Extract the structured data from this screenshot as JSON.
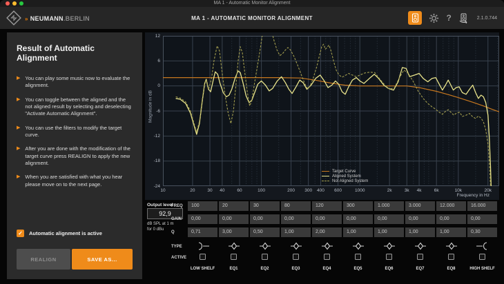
{
  "titlebar": {
    "title": "MA 1 - Automatic Monitor Alignment"
  },
  "header": {
    "brand_prefix": "»",
    "brand_name": "NEUMANN",
    "brand_suffix": ".BERLIN",
    "title": "MA 1 - AUTOMATIC MONITOR ALIGNMENT",
    "help_label": "?",
    "version": "2.1.0.744",
    "accent_color": "#ef8b1a"
  },
  "sidebar": {
    "title": "Result of Automatic Alignment",
    "bullets": [
      "You can play some music now to evaluate the alignment.",
      "You can toggle between the aligned and the not aligned result by selecting and deselecting \"Activate Automatic Alignment\".",
      "You can use the filters to modify the target curve.",
      "After you are done with the modification of the target curve press REALIGN to apply the new alignment.",
      "When you are satisfied with what you hear please move on to the next page."
    ],
    "checkbox": {
      "label": "Automatic alignment is active",
      "checked": true,
      "checkmark": "✓"
    },
    "realign_label": "REALIGN",
    "save_as_label": "SAVE AS..."
  },
  "chart_data": {
    "type": "line",
    "xlabel": "Frequency in Hz",
    "ylabel": "Magnitude in dB",
    "x_scale": "log",
    "xlim": [
      10,
      26000
    ],
    "ylim": [
      -24,
      12
    ],
    "grid": true,
    "legend_position": "bottom-center-right",
    "x_ticks": [
      {
        "f": 10,
        "label": "10"
      },
      {
        "f": 20,
        "label": "20"
      },
      {
        "f": 30,
        "label": "30"
      },
      {
        "f": 40,
        "label": "40"
      },
      {
        "f": 60,
        "label": "60"
      },
      {
        "f": 100,
        "label": "100"
      },
      {
        "f": 200,
        "label": "200"
      },
      {
        "f": 300,
        "label": "300"
      },
      {
        "f": 400,
        "label": "400"
      },
      {
        "f": 600,
        "label": "600"
      },
      {
        "f": 1000,
        "label": "1000"
      },
      {
        "f": 2000,
        "label": "2k"
      },
      {
        "f": 3000,
        "label": "3k"
      },
      {
        "f": 4000,
        "label": "4k"
      },
      {
        "f": 6000,
        "label": "6k"
      },
      {
        "f": 10000,
        "label": "10k"
      },
      {
        "f": 20000,
        "label": "20k"
      }
    ],
    "minor_grid_freqs": [
      50,
      70,
      80,
      90,
      150,
      250,
      350,
      450,
      500,
      700,
      800,
      900,
      1500,
      2500,
      3500,
      4500,
      5000,
      7000,
      8000,
      9000,
      15000,
      25000
    ],
    "y_ticks": [
      12,
      6,
      0,
      -6,
      -12,
      -18,
      -24
    ],
    "colors": {
      "plot_bg": "#0f141a",
      "grid_major": "#39424e",
      "grid_minor": "#242c36"
    },
    "series": [
      {
        "name": "Target Curve",
        "color": "#c8781e",
        "dash": "none",
        "width": 1.2,
        "points": [
          [
            10,
            2
          ],
          [
            150,
            2
          ],
          [
            250,
            1.9
          ],
          [
            350,
            1.4
          ],
          [
            500,
            0.7
          ],
          [
            700,
            0.2
          ],
          [
            1000,
            0
          ],
          [
            3000,
            0
          ],
          [
            4000,
            -0.4
          ],
          [
            6000,
            -1.3
          ],
          [
            8000,
            -2.1
          ],
          [
            10000,
            -2.8
          ],
          [
            14000,
            -3.9
          ],
          [
            18000,
            -4.8
          ],
          [
            22000,
            -5.6
          ],
          [
            26000,
            -6.2
          ]
        ]
      },
      {
        "name": "Aligned System",
        "color": "#e9e48b",
        "dash": "none",
        "width": 1.3,
        "points": [
          [
            13.5,
            -3
          ],
          [
            15,
            -3.2
          ],
          [
            17,
            -4.2
          ],
          [
            19,
            -6.5
          ],
          [
            21,
            -10
          ],
          [
            22,
            -11.6
          ],
          [
            23.5,
            -9
          ],
          [
            25,
            -4
          ],
          [
            26.5,
            0.5
          ],
          [
            27.5,
            1.6
          ],
          [
            29,
            -0.8
          ],
          [
            30.5,
            -1.4
          ],
          [
            32.5,
            1.5
          ],
          [
            34,
            3.4
          ],
          [
            36,
            2.8
          ],
          [
            38,
            0.6
          ],
          [
            41,
            -1.6
          ],
          [
            44,
            -2.6
          ],
          [
            47,
            -2.2
          ],
          [
            50,
            -0.8
          ],
          [
            54,
            1.8
          ],
          [
            58,
            3.6
          ],
          [
            61,
            3.2
          ],
          [
            65,
            0.8
          ],
          [
            70,
            -2.4
          ],
          [
            75,
            -4
          ],
          [
            80,
            -3.4
          ],
          [
            86,
            -1.4
          ],
          [
            92,
            0.4
          ],
          [
            100,
            1.2
          ],
          [
            110,
            0.2
          ],
          [
            120,
            -1.2
          ],
          [
            130,
            -0.6
          ],
          [
            145,
            1.2
          ],
          [
            160,
            2.2
          ],
          [
            175,
            0.8
          ],
          [
            190,
            -0.8
          ],
          [
            205,
            -1.8
          ],
          [
            225,
            -0.2
          ],
          [
            245,
            1.4
          ],
          [
            265,
            0.8
          ],
          [
            290,
            -0.8
          ],
          [
            320,
            0.2
          ],
          [
            355,
            1.8
          ],
          [
            395,
            2.6
          ],
          [
            435,
            1.2
          ],
          [
            475,
            -0.4
          ],
          [
            520,
            0.2
          ],
          [
            565,
            1.2
          ],
          [
            610,
            0.4
          ],
          [
            660,
            -1.4
          ],
          [
            710,
            -2
          ],
          [
            770,
            -0.2
          ],
          [
            840,
            1.4
          ],
          [
            920,
            2
          ],
          [
            1000,
            1.2
          ],
          [
            1100,
            0.6
          ],
          [
            1250,
            1.8
          ],
          [
            1400,
            2.8
          ],
          [
            1550,
            1.8
          ],
          [
            1750,
            0.2
          ],
          [
            1950,
            -0.6
          ],
          [
            2200,
            -1
          ],
          [
            2450,
            1
          ],
          [
            2700,
            4.4
          ],
          [
            2950,
            4.2
          ],
          [
            3200,
            2.2
          ],
          [
            3600,
            2.6
          ],
          [
            4000,
            3
          ],
          [
            4400,
            1.8
          ],
          [
            4900,
            1
          ],
          [
            5400,
            1.8
          ],
          [
            5900,
            2
          ],
          [
            6400,
            0.4
          ],
          [
            6900,
            -1
          ],
          [
            7400,
            0.2
          ],
          [
            7900,
            1.4
          ],
          [
            8400,
            0.2
          ],
          [
            8900,
            -1
          ],
          [
            9500,
            -0.4
          ],
          [
            10200,
            -0.2
          ],
          [
            11000,
            -1.6
          ],
          [
            12000,
            -2
          ],
          [
            13000,
            -0.8
          ],
          [
            14000,
            0.2
          ],
          [
            15000,
            -1.6
          ],
          [
            16000,
            -3
          ],
          [
            17000,
            -2.2
          ],
          [
            18000,
            -2.6
          ],
          [
            19000,
            -4
          ],
          [
            20000,
            -7
          ],
          [
            20600,
            -12
          ],
          [
            21200,
            -19
          ],
          [
            21800,
            -28
          ]
        ]
      },
      {
        "name": "Not Aligned System",
        "color": "#a19c4e",
        "dash": "3 2",
        "width": 1.1,
        "points": [
          [
            13.5,
            -2.6
          ],
          [
            15,
            -2.9
          ],
          [
            17,
            -3.8
          ],
          [
            19,
            -6
          ],
          [
            21,
            -9.5
          ],
          [
            22,
            -11
          ],
          [
            23.5,
            -8.5
          ],
          [
            25,
            -3.5
          ],
          [
            26.5,
            0.8
          ],
          [
            27.5,
            1.4
          ],
          [
            29,
            -0.9
          ],
          [
            31,
            1.5
          ],
          [
            33,
            6
          ],
          [
            35.5,
            9.6
          ],
          [
            37.5,
            8.4
          ],
          [
            40,
            3
          ],
          [
            43,
            -2.5
          ],
          [
            46,
            -6.5
          ],
          [
            49,
            -9
          ],
          [
            52,
            -6
          ],
          [
            55,
            0
          ],
          [
            58,
            6
          ],
          [
            61,
            9.4
          ],
          [
            64,
            8
          ],
          [
            68,
            3
          ],
          [
            72,
            -1.5
          ],
          [
            76,
            -4.8
          ],
          [
            80,
            -3.5
          ],
          [
            85,
            0.5
          ],
          [
            90,
            4
          ],
          [
            96,
            8
          ],
          [
            102,
            12
          ],
          [
            108,
            15.5
          ],
          [
            118,
            16.5
          ],
          [
            126,
            13.5
          ],
          [
            134,
            11
          ],
          [
            144,
            8.6
          ],
          [
            154,
            7.3
          ],
          [
            164,
            7.7
          ],
          [
            175,
            8.6
          ],
          [
            186,
            9.2
          ],
          [
            198,
            8.6
          ],
          [
            215,
            7
          ],
          [
            235,
            4.8
          ],
          [
            255,
            2.6
          ],
          [
            275,
            0.6
          ],
          [
            292,
            -0.6
          ],
          [
            310,
            -0.2
          ],
          [
            335,
            1.8
          ],
          [
            365,
            4.6
          ],
          [
            392,
            7.6
          ],
          [
            410,
            9.4
          ],
          [
            428,
            10
          ],
          [
            446,
            8.8
          ],
          [
            465,
            9.2
          ],
          [
            485,
            9.8
          ],
          [
            510,
            8.4
          ],
          [
            540,
            6
          ],
          [
            575,
            3.8
          ],
          [
            615,
            2.6
          ],
          [
            660,
            2.1
          ],
          [
            710,
            2.5
          ],
          [
            770,
            3
          ],
          [
            840,
            2.6
          ],
          [
            920,
            2.2
          ],
          [
            1000,
            2.6
          ],
          [
            1120,
            3.1
          ],
          [
            1260,
            3.3
          ],
          [
            1420,
            3.2
          ],
          [
            1600,
            1.6
          ],
          [
            1800,
            0.2
          ],
          [
            2000,
            -0.8
          ],
          [
            2250,
            -0.4
          ],
          [
            2500,
            1.8
          ],
          [
            2800,
            3.8
          ],
          [
            3100,
            3
          ],
          [
            3500,
            1
          ],
          [
            3900,
            -1.2
          ],
          [
            4400,
            -3
          ],
          [
            4900,
            -4.2
          ],
          [
            5400,
            -5
          ],
          [
            5900,
            -5.6
          ],
          [
            6400,
            -6.3
          ],
          [
            6900,
            -6.8
          ],
          [
            7400,
            -6.1
          ],
          [
            7900,
            -5.7
          ],
          [
            8400,
            -6.3
          ],
          [
            9000,
            -7
          ],
          [
            9600,
            -6.5
          ],
          [
            10300,
            -6.3
          ],
          [
            11000,
            -7.3
          ],
          [
            12000,
            -7
          ],
          [
            13000,
            -6.6
          ],
          [
            14000,
            -7.4
          ],
          [
            15000,
            -7.8
          ],
          [
            16000,
            -7.2
          ],
          [
            17000,
            -7.7
          ],
          [
            18000,
            -8.6
          ],
          [
            19000,
            -10.5
          ],
          [
            20000,
            -14
          ],
          [
            20600,
            -18
          ],
          [
            21200,
            -24
          ],
          [
            21800,
            -30
          ]
        ]
      }
    ]
  },
  "output_level": {
    "label": "Output level",
    "value": "92,9",
    "unit_line1": "dB SPL at 1 m",
    "unit_line2": "for 0 dBu"
  },
  "eq": {
    "row_labels": {
      "freq": "FREQ",
      "gain": "GAIN",
      "q": "Q",
      "type": "TYPE",
      "active": "ACTIVE"
    },
    "bands": [
      {
        "label": "LOW SHELF",
        "freq": "100",
        "gain": "0,00",
        "q": "0,71",
        "type": "low-shelf",
        "active": false
      },
      {
        "label": "EQ1",
        "freq": "20",
        "gain": "0,00",
        "q": "3,00",
        "type": "bell",
        "active": false
      },
      {
        "label": "EQ2",
        "freq": "30",
        "gain": "0,00",
        "q": "0,50",
        "type": "bell",
        "active": false
      },
      {
        "label": "EQ3",
        "freq": "80",
        "gain": "0,00",
        "q": "1,00",
        "type": "bell",
        "active": false
      },
      {
        "label": "EQ4",
        "freq": "120",
        "gain": "0,00",
        "q": "2,00",
        "type": "bell",
        "active": false
      },
      {
        "label": "EQ5",
        "freq": "300",
        "gain": "0,00",
        "q": "1,00",
        "type": "bell",
        "active": false
      },
      {
        "label": "EQ6",
        "freq": "1.000",
        "gain": "0,00",
        "q": "1,00",
        "type": "bell",
        "active": false
      },
      {
        "label": "EQ7",
        "freq": "3.000",
        "gain": "0,00",
        "q": "1,00",
        "type": "bell",
        "active": false
      },
      {
        "label": "EQ8",
        "freq": "12.000",
        "gain": "0,00",
        "q": "1,00",
        "type": "bell",
        "active": false
      },
      {
        "label": "HIGH SHELF",
        "freq": "16.000",
        "gain": "0,00",
        "q": "0,30",
        "type": "high-shelf",
        "active": false
      }
    ]
  }
}
